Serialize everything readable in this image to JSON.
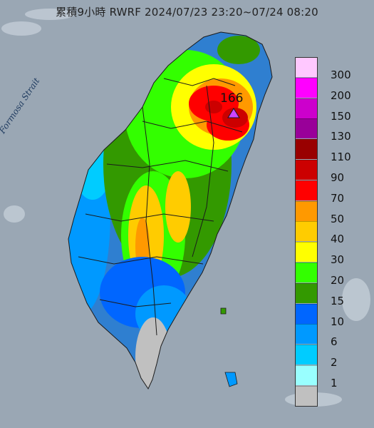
{
  "header": {
    "title": "累積9小時 RWRF 2024/07/23 23:20~07/24 08:20"
  },
  "map": {
    "strait_label": "Formosa Strait",
    "max_value_label": "166",
    "colors": {
      "sea": "#9aa7b4",
      "land_base": "#2f7fd0",
      "boundary": "#1b1b1b"
    }
  },
  "legend": {
    "items": [
      {
        "label": "300",
        "color": "#ffc8ff"
      },
      {
        "label": "200",
        "color": "#ff00ff"
      },
      {
        "label": "150",
        "color": "#cc00cc"
      },
      {
        "label": "130",
        "color": "#990099"
      },
      {
        "label": "110",
        "color": "#990000"
      },
      {
        "label": "90",
        "color": "#cc0000"
      },
      {
        "label": "70",
        "color": "#ff0000"
      },
      {
        "label": "50",
        "color": "#ff9900"
      },
      {
        "label": "40",
        "color": "#ffcc00"
      },
      {
        "label": "30",
        "color": "#ffff00"
      },
      {
        "label": "20",
        "color": "#33ff00"
      },
      {
        "label": "15",
        "color": "#339900"
      },
      {
        "label": "10",
        "color": "#0066ff"
      },
      {
        "label": "6",
        "color": "#0099ff"
      },
      {
        "label": "2",
        "color": "#00ccff"
      },
      {
        "label": "1",
        "color": "#99ffff"
      },
      {
        "label": "",
        "color": "#c0c0c0"
      }
    ]
  }
}
